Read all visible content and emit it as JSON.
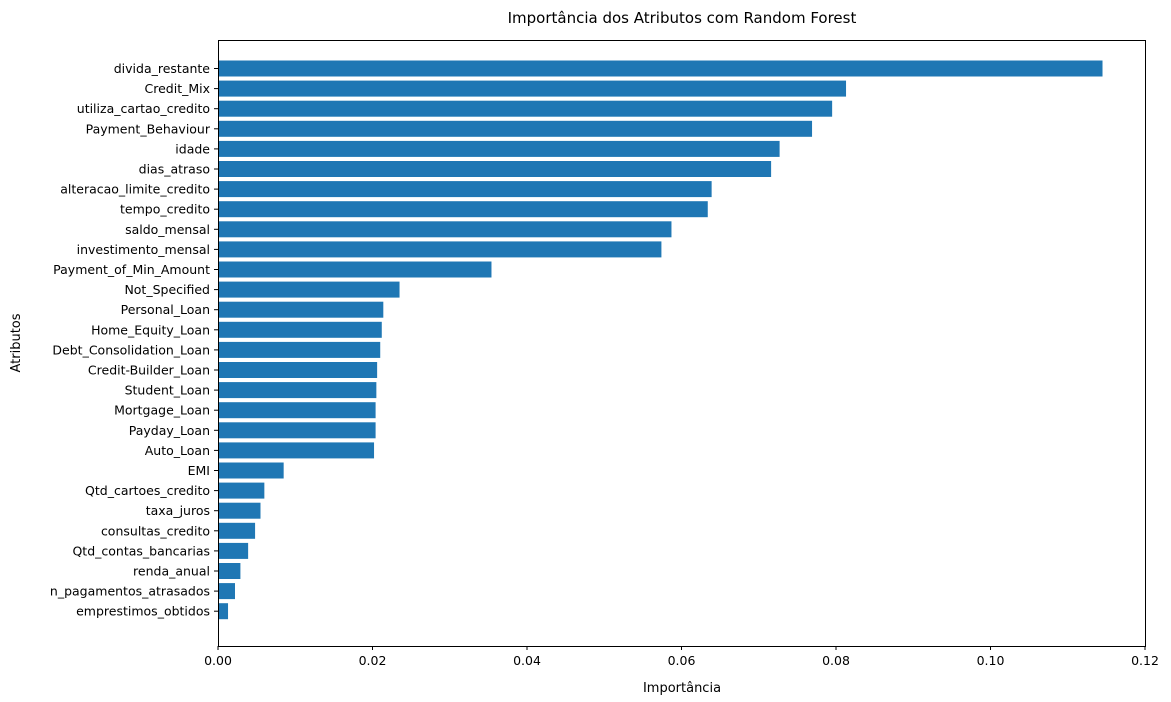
{
  "chart_data": {
    "type": "bar",
    "orientation": "horizontal",
    "title": "Importância dos Atributos com Random Forest",
    "xlabel": "Importância",
    "ylabel": "Atributos",
    "xlim": [
      0,
      0.12
    ],
    "xticks": [
      "0.00",
      "0.02",
      "0.04",
      "0.06",
      "0.08",
      "0.10",
      "0.12"
    ],
    "grid": false,
    "bar_color": "#1f77b4",
    "categories": [
      "divida_restante",
      "Credit_Mix",
      "utiliza_cartao_credito",
      "Payment_Behaviour",
      "idade",
      "dias_atraso",
      "alteracao_limite_credito",
      "tempo_credito",
      "saldo_mensal",
      "investimento_mensal",
      "Payment_of_Min_Amount",
      "Not_Specified",
      "Personal_Loan",
      "Home_Equity_Loan",
      "Debt_Consolidation_Loan",
      "Credit-Builder_Loan",
      "Student_Loan",
      "Mortgage_Loan",
      "Payday_Loan",
      "Auto_Loan",
      "EMI",
      "Qtd_cartoes_credito",
      "taxa_juros",
      "consultas_credito",
      "Qtd_contas_bancarias",
      "renda_anual",
      "n_pagamentos_atrasados",
      "emprestimos_obtidos"
    ],
    "values": [
      0.1145,
      0.0813,
      0.0795,
      0.0769,
      0.0727,
      0.0716,
      0.0639,
      0.0634,
      0.0587,
      0.0574,
      0.0354,
      0.0235,
      0.0214,
      0.0212,
      0.021,
      0.0206,
      0.0205,
      0.0204,
      0.0204,
      0.0202,
      0.0085,
      0.006,
      0.0055,
      0.0048,
      0.0039,
      0.0029,
      0.0022,
      0.0013
    ]
  }
}
